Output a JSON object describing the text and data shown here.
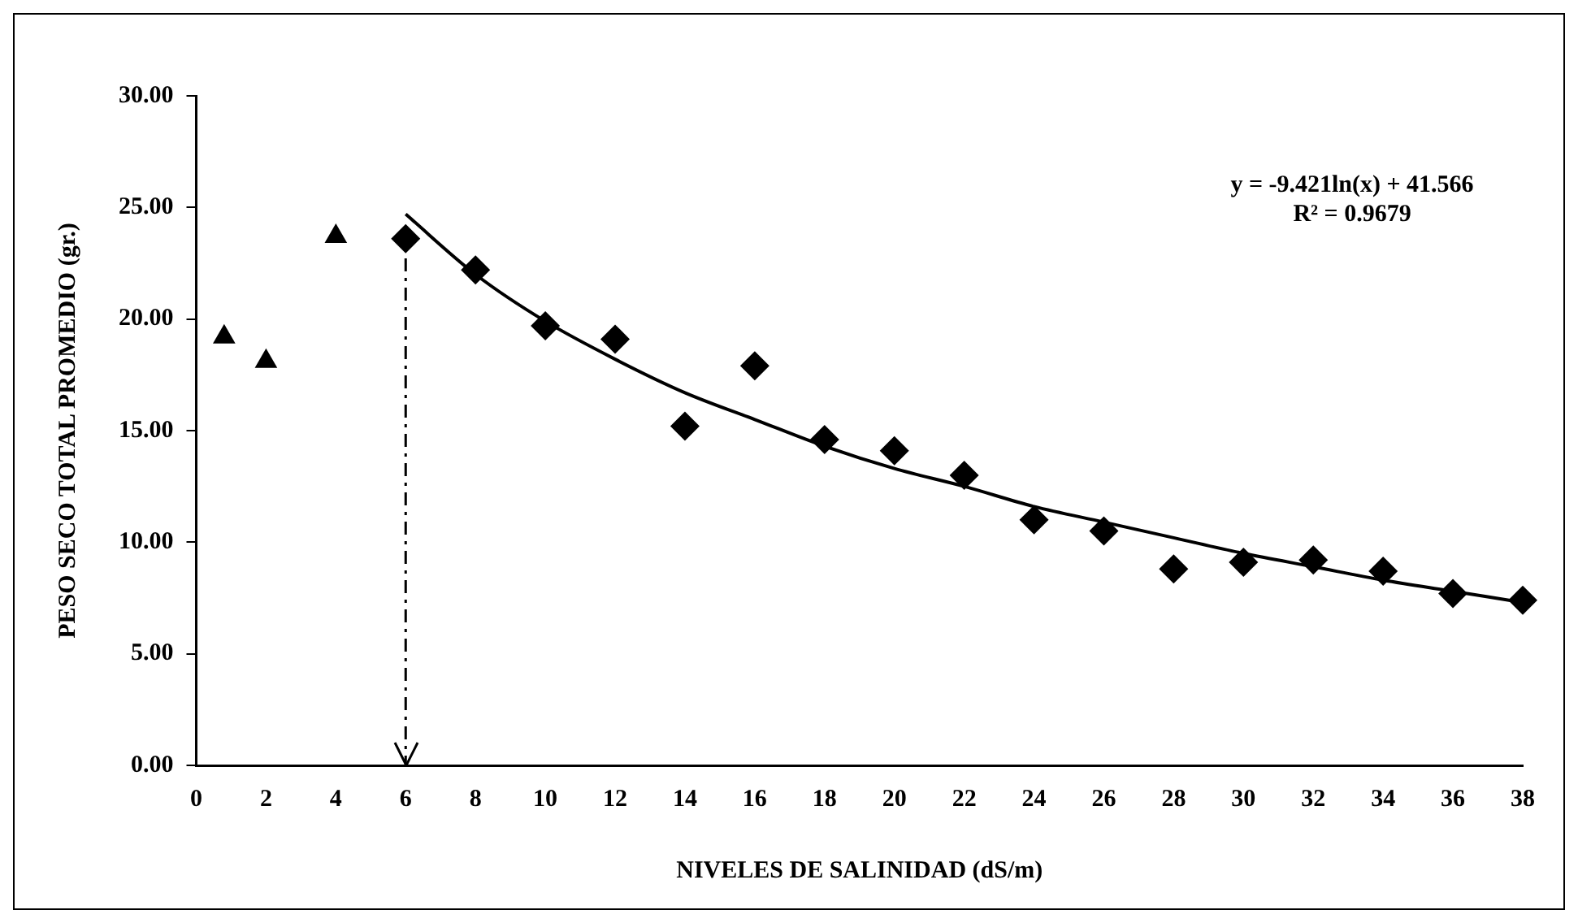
{
  "chart_data": {
    "type": "scatter",
    "xlabel": "NIVELES DE SALINIDAD (dS/m)",
    "ylabel": "PESO SECO TOTAL PROMEDIO (gr.)",
    "annotations": [
      "y = -9.421ln(x) + 41.566",
      "R² = 0.9679"
    ],
    "series": [
      {
        "color": "#000000",
        "marker": "triangle",
        "x": [
          0.8,
          2,
          4
        ],
        "values": [
          19.2,
          18.1,
          23.7
        ]
      },
      {
        "color": "#000000",
        "marker": "diamond",
        "x": [
          6,
          8,
          10,
          12,
          14,
          16,
          18,
          20,
          22,
          24,
          26,
          28,
          30,
          32,
          34,
          36,
          38
        ],
        "values": [
          23.6,
          22.2,
          19.7,
          19.1,
          15.2,
          17.9,
          14.6,
          14.1,
          13.0,
          11.0,
          10.5,
          8.8,
          9.1,
          9.2,
          8.7,
          7.7,
          7.4
        ]
      },
      {
        "type": "line",
        "color": "#000000",
        "marker": "none",
        "line_style": "solid",
        "x": [
          6,
          8,
          10,
          12,
          14,
          16,
          18,
          20,
          22,
          24,
          26,
          28,
          30,
          32,
          34,
          36,
          38
        ],
        "values": [
          24.7,
          22.0,
          19.9,
          18.2,
          16.7,
          15.5,
          14.3,
          13.3,
          12.5,
          11.6,
          10.9,
          10.2,
          9.5,
          8.9,
          8.3,
          7.8,
          7.3
        ]
      }
    ],
    "ref_lines": [
      {
        "axis": "x",
        "value": 6,
        "color": "#000000",
        "line_style": "dashed"
      }
    ],
    "xlim": [
      0,
      38
    ],
    "xticks": [
      0,
      2,
      4,
      6,
      8,
      10,
      12,
      14,
      16,
      18,
      20,
      22,
      24,
      26,
      28,
      30,
      32,
      34,
      36,
      38
    ],
    "ylim": [
      0,
      30
    ],
    "yticks": [
      {
        "value": 0,
        "label": "0.00"
      },
      {
        "value": 5,
        "label": "5.00"
      },
      {
        "value": 10,
        "label": "10.00"
      },
      {
        "value": 15,
        "label": "15.00"
      },
      {
        "value": 20,
        "label": "20.00"
      },
      {
        "value": 25,
        "label": "25.00"
      },
      {
        "value": 30,
        "label": "30.00"
      }
    ],
    "grid": false,
    "legend": false
  }
}
